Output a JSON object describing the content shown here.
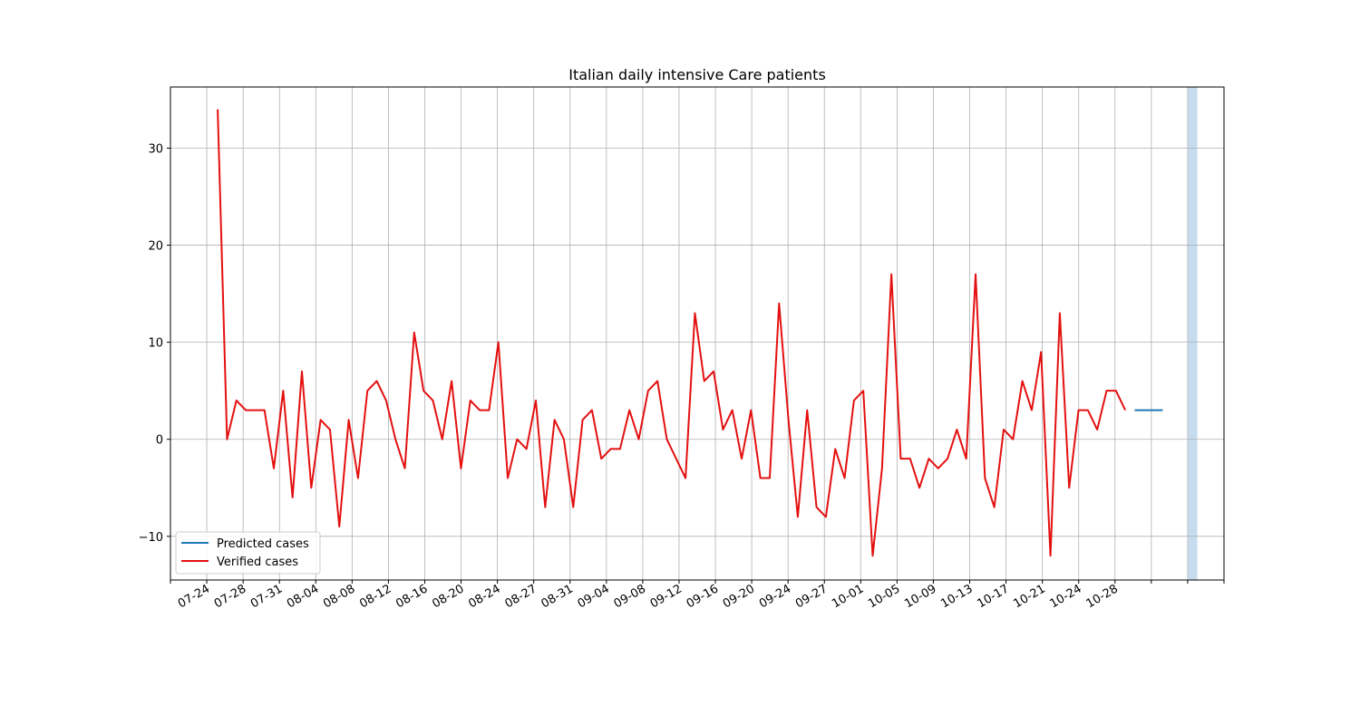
{
  "chart_data": {
    "type": "line",
    "title": "Italian daily intensive Care patients",
    "xlabel": "",
    "ylabel": "",
    "ylim": [
      -14.5,
      36.3
    ],
    "yticks": [
      -10,
      0,
      10,
      20,
      30
    ],
    "x_tick_labels": [
      "",
      "07-24",
      "07-28",
      "07-31",
      "08-04",
      "08-08",
      "08-12",
      "08-16",
      "08-20",
      "08-24",
      "08-27",
      "08-31",
      "09-04",
      "09-08",
      "09-12",
      "09-16",
      "09-20",
      "09-24",
      "09-27",
      "10-01",
      "10-05",
      "10-09",
      "10-13",
      "10-17",
      "10-21",
      "10-24",
      "10-28",
      "",
      "",
      ""
    ],
    "grid": true,
    "legend_position": "lower-left",
    "series": [
      {
        "name": "Predicted cases",
        "color": "#1f77b4",
        "start_index": 98,
        "values": [
          3,
          3,
          3,
          3
        ]
      },
      {
        "name": "Verified cases",
        "color": "#e41010",
        "start_index": 0,
        "values": [
          34,
          0,
          4,
          3,
          3,
          3,
          -3,
          5,
          -6,
          7,
          -5,
          2,
          1,
          -9,
          2,
          -4,
          5,
          6,
          4,
          0,
          -3,
          11,
          5,
          4,
          0,
          6,
          -3,
          4,
          3,
          3,
          10,
          -4,
          0,
          -1,
          4,
          -7,
          2,
          0,
          -7,
          2,
          3,
          -2,
          -1,
          -1,
          3,
          0,
          5,
          6,
          0,
          null,
          -4,
          13,
          6,
          7,
          1,
          3,
          -2,
          3,
          -4,
          -4,
          14,
          2,
          -8,
          3,
          -7,
          -8,
          -1,
          -4,
          4,
          5,
          -12,
          -3,
          17,
          -2,
          -2,
          -5,
          -2,
          -3,
          -2,
          1,
          -2,
          17,
          -4,
          -7,
          1,
          0,
          6,
          3,
          9,
          -12,
          13,
          -5,
          3,
          3,
          1,
          5,
          5,
          3
        ]
      }
    ],
    "highlight_band": {
      "start_index": 103.7,
      "end_index": 104.7,
      "color": "#c6dcee"
    }
  }
}
